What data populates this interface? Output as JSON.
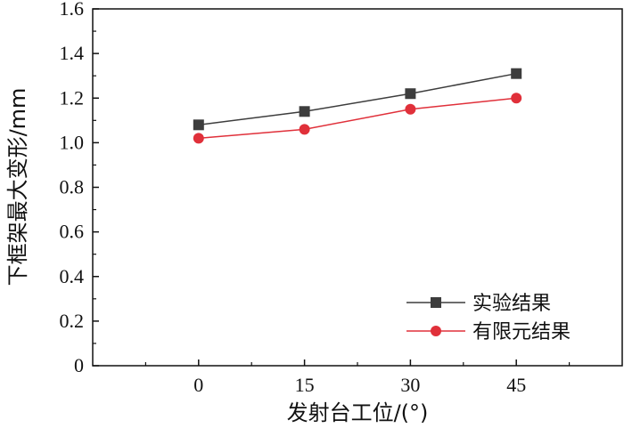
{
  "chart_data": {
    "type": "line",
    "x": [
      0,
      15,
      30,
      45
    ],
    "x_tick_labels": [
      "0",
      "15",
      "30",
      "45"
    ],
    "y_tick_labels": [
      "0",
      "0.2",
      "0.4",
      "0.6",
      "0.8",
      "1.0",
      "1.2",
      "1.4",
      "1.6"
    ],
    "y_ticks": [
      0,
      0.2,
      0.4,
      0.6,
      0.8,
      1.0,
      1.2,
      1.4,
      1.6
    ],
    "xlim": [
      -15,
      60
    ],
    "ylim": [
      0,
      1.6
    ],
    "xlabel": "发射台工位/(°)",
    "ylabel": "下框架最大变形/mm",
    "legend_position": "bottom-right",
    "grid": false,
    "series": [
      {
        "name": "实验结果",
        "values": [
          1.08,
          1.14,
          1.22,
          1.31
        ],
        "color": "#3d3d3d",
        "marker": "square"
      },
      {
        "name": "有限元结果",
        "values": [
          1.02,
          1.06,
          1.15,
          1.2
        ],
        "color": "#e0303a",
        "marker": "circle"
      }
    ]
  }
}
